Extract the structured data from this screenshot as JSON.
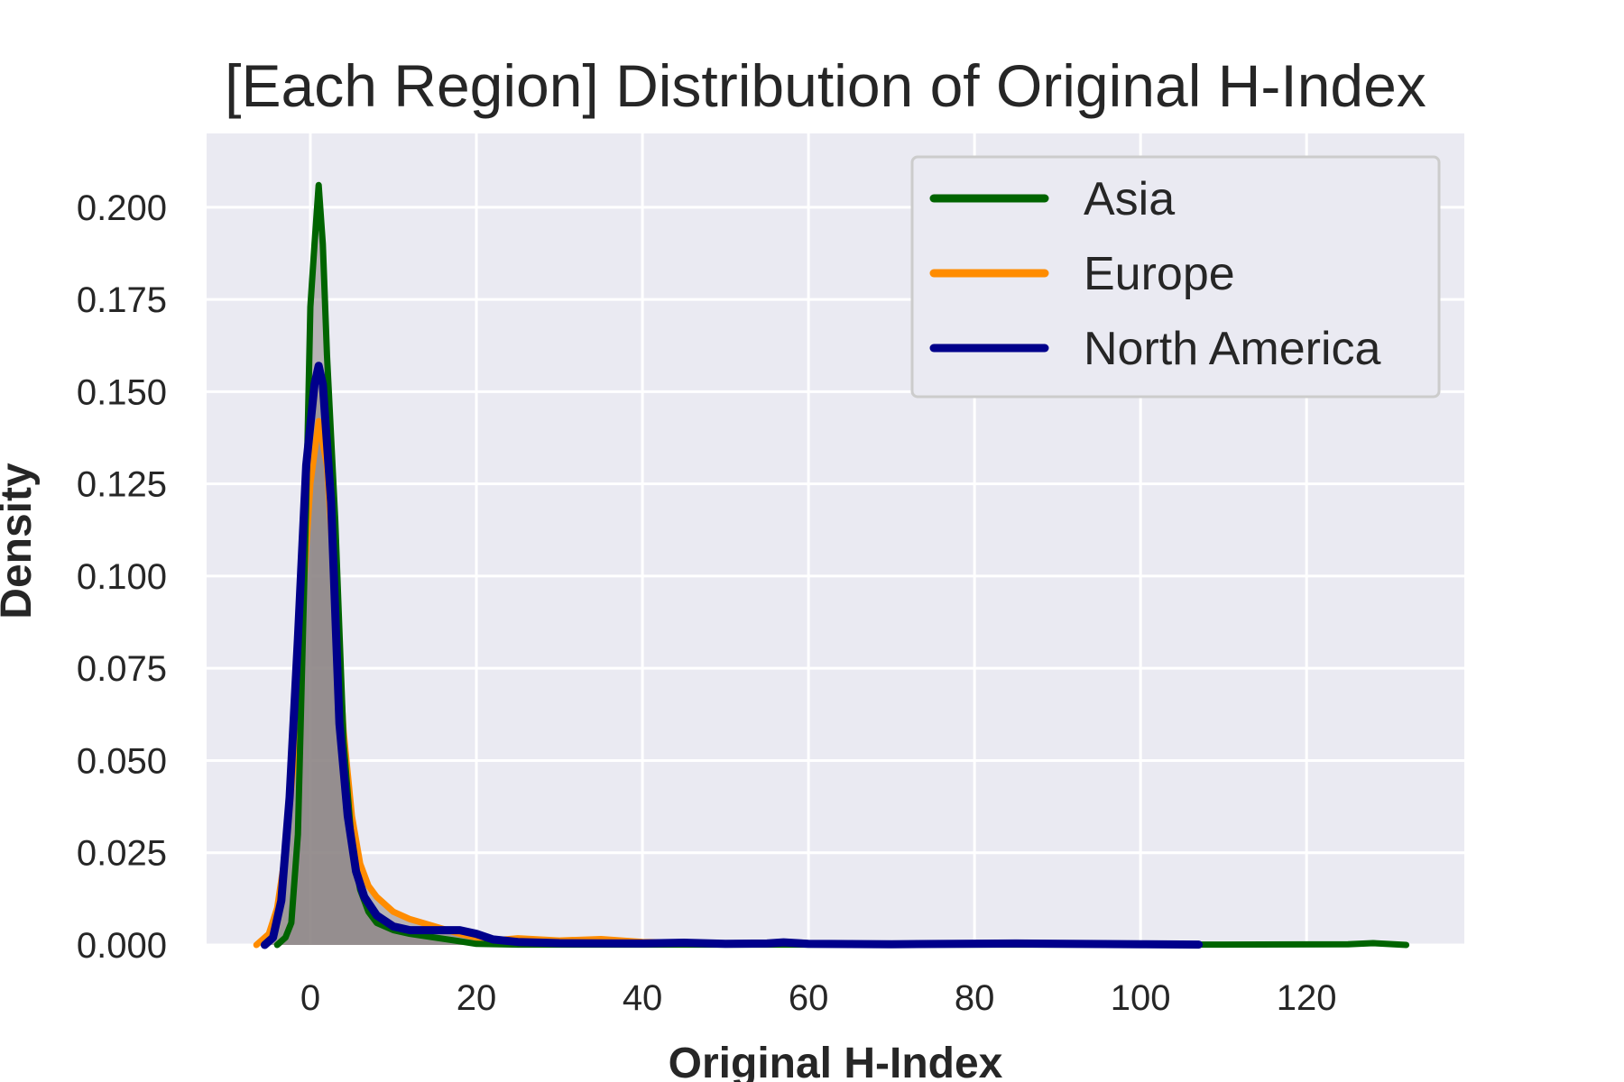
{
  "chart_data": {
    "type": "line",
    "title": "[Each Region] Distribution of Original H-Index",
    "xlabel": "Original H-Index",
    "ylabel": "Density",
    "xlim": [
      -12.5,
      139
    ],
    "ylim": [
      0,
      0.22
    ],
    "x_ticks": [
      0,
      20,
      40,
      60,
      80,
      100,
      120
    ],
    "y_ticks": [
      0.0,
      0.025,
      0.05,
      0.075,
      0.1,
      0.125,
      0.15,
      0.175,
      0.2
    ],
    "y_tick_labels": [
      "0.000",
      "0.025",
      "0.050",
      "0.075",
      "0.100",
      "0.125",
      "0.150",
      "0.175",
      "0.200"
    ],
    "x_tick_labels": [
      "0",
      "20",
      "40",
      "60",
      "80",
      "100",
      "120"
    ],
    "grid": true,
    "legend": "top-right",
    "fill_color": "#8c8585",
    "series": [
      {
        "name": "Asia",
        "color": "#006400",
        "x": [
          -4,
          -3,
          -2.3,
          -1.5,
          -0.5,
          0,
          0.5,
          1,
          1.5,
          2,
          3,
          4,
          5,
          6,
          7,
          8,
          10,
          12,
          15,
          18,
          20,
          25,
          35,
          50,
          70,
          90,
          110,
          125,
          128,
          132
        ],
        "y": [
          0.0,
          0.002,
          0.006,
          0.03,
          0.12,
          0.173,
          0.19,
          0.206,
          0.19,
          0.16,
          0.115,
          0.055,
          0.027,
          0.015,
          0.009,
          0.006,
          0.004,
          0.003,
          0.002,
          0.001,
          0.0003,
          0.0001,
          0.0001,
          0.0001,
          0.0001,
          0.0001,
          0.0001,
          0.0002,
          0.0005,
          0.0
        ]
      },
      {
        "name": "Europe",
        "color": "#ff8c00",
        "x": [
          -6.5,
          -5,
          -4,
          -3,
          -2,
          -1,
          0,
          1,
          2,
          3,
          4,
          5,
          6,
          7,
          8,
          10,
          12,
          15,
          18,
          20,
          22,
          25,
          30,
          35,
          40,
          50,
          60,
          80,
          100
        ],
        "y": [
          0.0,
          0.003,
          0.01,
          0.025,
          0.05,
          0.09,
          0.125,
          0.142,
          0.13,
          0.095,
          0.058,
          0.035,
          0.022,
          0.016,
          0.013,
          0.009,
          0.007,
          0.005,
          0.003,
          0.002,
          0.0012,
          0.0018,
          0.0012,
          0.0016,
          0.0008,
          0.0004,
          0.0002,
          0.0002,
          0.0001
        ]
      },
      {
        "name": "North America",
        "color": "#00008b",
        "x": [
          -5.5,
          -4.5,
          -3.5,
          -2.5,
          -1.5,
          -0.5,
          0.5,
          1,
          1.5,
          2.5,
          3.5,
          4.5,
          5.5,
          6.5,
          8,
          10,
          12,
          15,
          18,
          20,
          22,
          25,
          30,
          40,
          45,
          50,
          55,
          57,
          60,
          70,
          85,
          100,
          107
        ],
        "y": [
          0.0,
          0.002,
          0.012,
          0.04,
          0.083,
          0.13,
          0.152,
          0.157,
          0.152,
          0.12,
          0.06,
          0.035,
          0.02,
          0.013,
          0.008,
          0.005,
          0.004,
          0.004,
          0.004,
          0.003,
          0.0015,
          0.0008,
          0.0005,
          0.0004,
          0.0006,
          0.0003,
          0.0004,
          0.0007,
          0.0003,
          0.0002,
          0.0004,
          0.0002,
          0.0001
        ]
      }
    ]
  }
}
